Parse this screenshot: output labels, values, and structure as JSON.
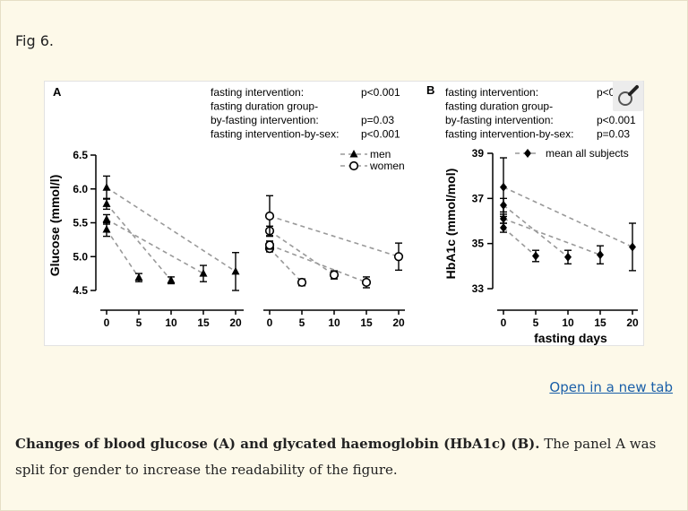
{
  "page": {
    "fig_label": "Fig 6.",
    "open_link": "Open in a new tab",
    "caption_bold": "Changes of blood glucose (A) and glycated haemoglobin (HbA1c) (B).",
    "caption_rest": " The panel A was split for gender to increase the readability of the figure."
  },
  "chart_data": [
    {
      "panel": "A",
      "type": "scatter",
      "ylabel": "Glucose (mmol/l)",
      "ylim": [
        4.5,
        6.5
      ],
      "yticks": [
        "4.5",
        "5.0",
        "5.5",
        "6.0",
        "6.5"
      ],
      "xticks": [
        "0",
        "5",
        "10",
        "15",
        "20"
      ],
      "stats": [
        {
          "label": "fasting intervention:",
          "p": "p<0.001"
        },
        {
          "label": "fasting duration group-",
          "p": ""
        },
        {
          "label": "by-fasting intervention:",
          "p": "p=0.03"
        },
        {
          "label": "fasting intervention-by-sex:",
          "p": "p<0.001"
        }
      ],
      "legend": [
        "men",
        "women"
      ],
      "series": [
        {
          "name": "men",
          "marker": "triangle",
          "groups": [
            {
              "x": [
                0,
                5
              ],
              "y": [
                5.4,
                4.69
              ],
              "err": [
                0.1,
                0.06
              ]
            },
            {
              "x": [
                0,
                10
              ],
              "y": [
                5.78,
                4.65
              ],
              "err": [
                0.08,
                0.05
              ]
            },
            {
              "x": [
                0,
                15
              ],
              "y": [
                5.55,
                4.75
              ],
              "err": [
                0.07,
                0.12
              ]
            },
            {
              "x": [
                0,
                20
              ],
              "y": [
                6.02,
                4.78
              ],
              "err": [
                0.17,
                0.28
              ]
            }
          ]
        },
        {
          "name": "women",
          "marker": "circle",
          "groups": [
            {
              "x": [
                0,
                5
              ],
              "y": [
                5.12,
                4.62
              ],
              "err": [
                0.05,
                0.05
              ]
            },
            {
              "x": [
                0,
                10
              ],
              "y": [
                5.38,
                4.73
              ],
              "err": [
                0.07,
                0.06
              ]
            },
            {
              "x": [
                0,
                15
              ],
              "y": [
                5.17,
                4.62
              ],
              "err": [
                0.06,
                0.08
              ]
            },
            {
              "x": [
                0,
                20
              ],
              "y": [
                5.6,
                5.0
              ],
              "err": [
                0.3,
                0.2
              ]
            }
          ]
        }
      ]
    },
    {
      "panel": "B",
      "type": "scatter",
      "ylabel": "HbA1c (mmol/mol)",
      "xlabel": "fasting days",
      "ylim": [
        33,
        39
      ],
      "yticks": [
        "33",
        "35",
        "37",
        "39"
      ],
      "xticks": [
        "0",
        "5",
        "10",
        "15",
        "20"
      ],
      "stats": [
        {
          "label": "fasting intervention:",
          "p": "p<0.001"
        },
        {
          "label": "fasting duration group-",
          "p": ""
        },
        {
          "label": "by-fasting intervention:",
          "p": "p<0.001"
        },
        {
          "label": "fasting intervention-by-sex:",
          "p": "p=0.03"
        }
      ],
      "legend": [
        "mean all subjects"
      ],
      "series": [
        {
          "name": "mean all subjects",
          "marker": "diamond",
          "groups": [
            {
              "x": [
                0,
                5
              ],
              "y": [
                35.7,
                34.45
              ],
              "err": [
                0.2,
                0.25
              ]
            },
            {
              "x": [
                0,
                10
              ],
              "y": [
                36.7,
                34.4
              ],
              "err": [
                0.3,
                0.3
              ]
            },
            {
              "x": [
                0,
                15
              ],
              "y": [
                36.1,
                34.5
              ],
              "err": [
                0.2,
                0.4
              ]
            },
            {
              "x": [
                0,
                20
              ],
              "y": [
                37.5,
                34.85
              ],
              "err": [
                1.3,
                1.05
              ]
            }
          ]
        }
      ]
    }
  ]
}
